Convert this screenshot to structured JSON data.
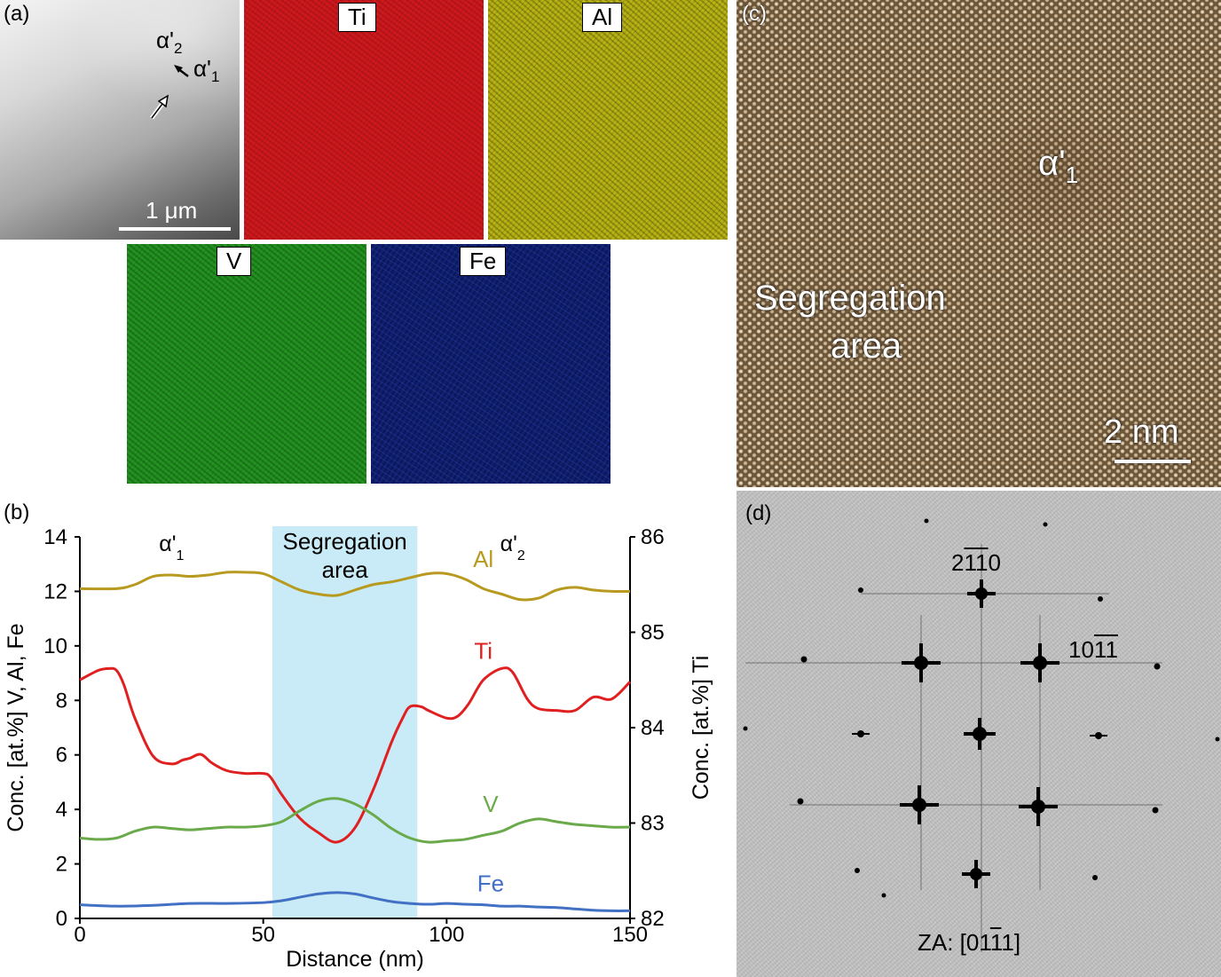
{
  "panels": {
    "a": {
      "label": "(a)",
      "scale_bar": "1 μm",
      "phase_labels": [
        {
          "base": "α'",
          "sub": "2"
        },
        {
          "base": "α'",
          "sub": "1"
        }
      ],
      "maps": [
        {
          "element": "Ti",
          "color": "#c8161a"
        },
        {
          "element": "Al",
          "color": "#c9c514"
        },
        {
          "element": "V",
          "color": "#1f8c1d"
        },
        {
          "element": "Fe",
          "color": "#1c33a6"
        }
      ]
    },
    "b": {
      "label": "(b)"
    },
    "c": {
      "label": "(c)",
      "phase": {
        "base": "α'",
        "sub": "1"
      },
      "segregation_line1": "Segregation",
      "segregation_line2": "area",
      "scale_bar": "2 nm"
    },
    "d": {
      "label": "(d)",
      "spot1": {
        "a": "2",
        "b": "1",
        "c": "1",
        "d": "0"
      },
      "spot2": {
        "a": "10",
        "b": "1",
        "c": "1"
      },
      "zone_axis": {
        "prefix": "ZA: [01",
        "bar": "1",
        "suffix": "1]"
      }
    }
  },
  "chart_data": {
    "type": "line",
    "xlabel": "Distance (nm)",
    "ylabel_left": "Conc. [at.%] V, Al, Fe",
    "ylabel_right": "Conc. [at.%] Ti",
    "xlim": [
      0,
      150
    ],
    "ylim_left": [
      0,
      14
    ],
    "ylim_right": [
      82,
      86
    ],
    "xticks": [
      0,
      50,
      100,
      150
    ],
    "yticks_left": [
      0,
      2,
      4,
      6,
      8,
      10,
      12,
      14
    ],
    "yticks_right": [
      82,
      83,
      84,
      85,
      86
    ],
    "grid": false,
    "shaded_region": {
      "x": [
        52.5,
        92
      ],
      "label_line1": "Segregation",
      "label_line2": "area",
      "color": "#c8ebf7"
    },
    "region_labels": [
      {
        "base": "α'",
        "sub": "1",
        "x": 25
      },
      {
        "base": "α'",
        "sub": "2",
        "x": 118
      }
    ],
    "series": [
      {
        "name": "Al",
        "axis": "left",
        "color": "#b79a1f",
        "x": [
          0,
          10,
          15,
          20,
          25,
          30,
          35,
          40,
          45,
          50,
          55,
          60,
          65,
          70,
          75,
          80,
          85,
          90,
          95,
          100,
          105,
          110,
          115,
          120,
          125,
          130,
          135,
          140,
          145,
          150
        ],
        "y": [
          12.1,
          12.1,
          12.25,
          12.55,
          12.6,
          12.55,
          12.6,
          12.7,
          12.7,
          12.65,
          12.35,
          12.05,
          11.9,
          11.85,
          12.05,
          12.25,
          12.35,
          12.5,
          12.65,
          12.65,
          12.45,
          12.1,
          11.9,
          11.7,
          11.75,
          12.05,
          12.15,
          12.05,
          12.0,
          12.0
        ]
      },
      {
        "name": "Ti",
        "axis": "right",
        "color": "#e02020",
        "x": [
          0,
          5,
          8,
          10,
          12,
          15,
          20,
          25,
          28,
          30,
          33,
          36,
          40,
          45,
          50,
          52,
          55,
          60,
          65,
          70,
          75,
          80,
          85,
          88,
          90,
          93,
          95,
          100,
          103,
          106,
          110,
          115,
          118,
          122,
          125,
          130,
          135,
          140,
          145,
          150
        ],
        "y": [
          84.5,
          84.6,
          84.62,
          84.6,
          84.45,
          84.1,
          83.7,
          83.62,
          83.66,
          83.68,
          83.72,
          83.63,
          83.55,
          83.52,
          83.52,
          83.48,
          83.3,
          83.05,
          82.9,
          82.8,
          82.95,
          83.35,
          83.85,
          84.1,
          84.22,
          84.22,
          84.18,
          84.1,
          84.12,
          84.25,
          84.5,
          84.62,
          84.58,
          84.3,
          84.2,
          84.18,
          84.18,
          84.32,
          84.3,
          84.48
        ]
      },
      {
        "name": "V",
        "axis": "left",
        "color": "#6aaa4a",
        "x": [
          0,
          5,
          10,
          15,
          20,
          25,
          30,
          35,
          40,
          45,
          50,
          55,
          60,
          65,
          70,
          75,
          80,
          85,
          90,
          95,
          100,
          105,
          110,
          115,
          120,
          125,
          130,
          135,
          140,
          145,
          150
        ],
        "y": [
          2.95,
          2.9,
          2.95,
          3.2,
          3.35,
          3.3,
          3.25,
          3.3,
          3.35,
          3.35,
          3.4,
          3.55,
          3.95,
          4.3,
          4.4,
          4.2,
          3.8,
          3.3,
          2.95,
          2.8,
          2.85,
          2.9,
          3.05,
          3.2,
          3.5,
          3.65,
          3.55,
          3.45,
          3.4,
          3.35,
          3.35
        ]
      },
      {
        "name": "Fe",
        "axis": "left",
        "color": "#4270c4",
        "x": [
          0,
          10,
          20,
          30,
          40,
          50,
          55,
          60,
          65,
          70,
          75,
          80,
          85,
          90,
          95,
          100,
          105,
          110,
          115,
          120,
          125,
          130,
          135,
          140,
          145,
          150
        ],
        "y": [
          0.5,
          0.45,
          0.48,
          0.55,
          0.55,
          0.58,
          0.65,
          0.78,
          0.9,
          0.95,
          0.9,
          0.75,
          0.62,
          0.55,
          0.52,
          0.55,
          0.52,
          0.5,
          0.45,
          0.45,
          0.42,
          0.4,
          0.35,
          0.3,
          0.28,
          0.28
        ]
      }
    ]
  }
}
